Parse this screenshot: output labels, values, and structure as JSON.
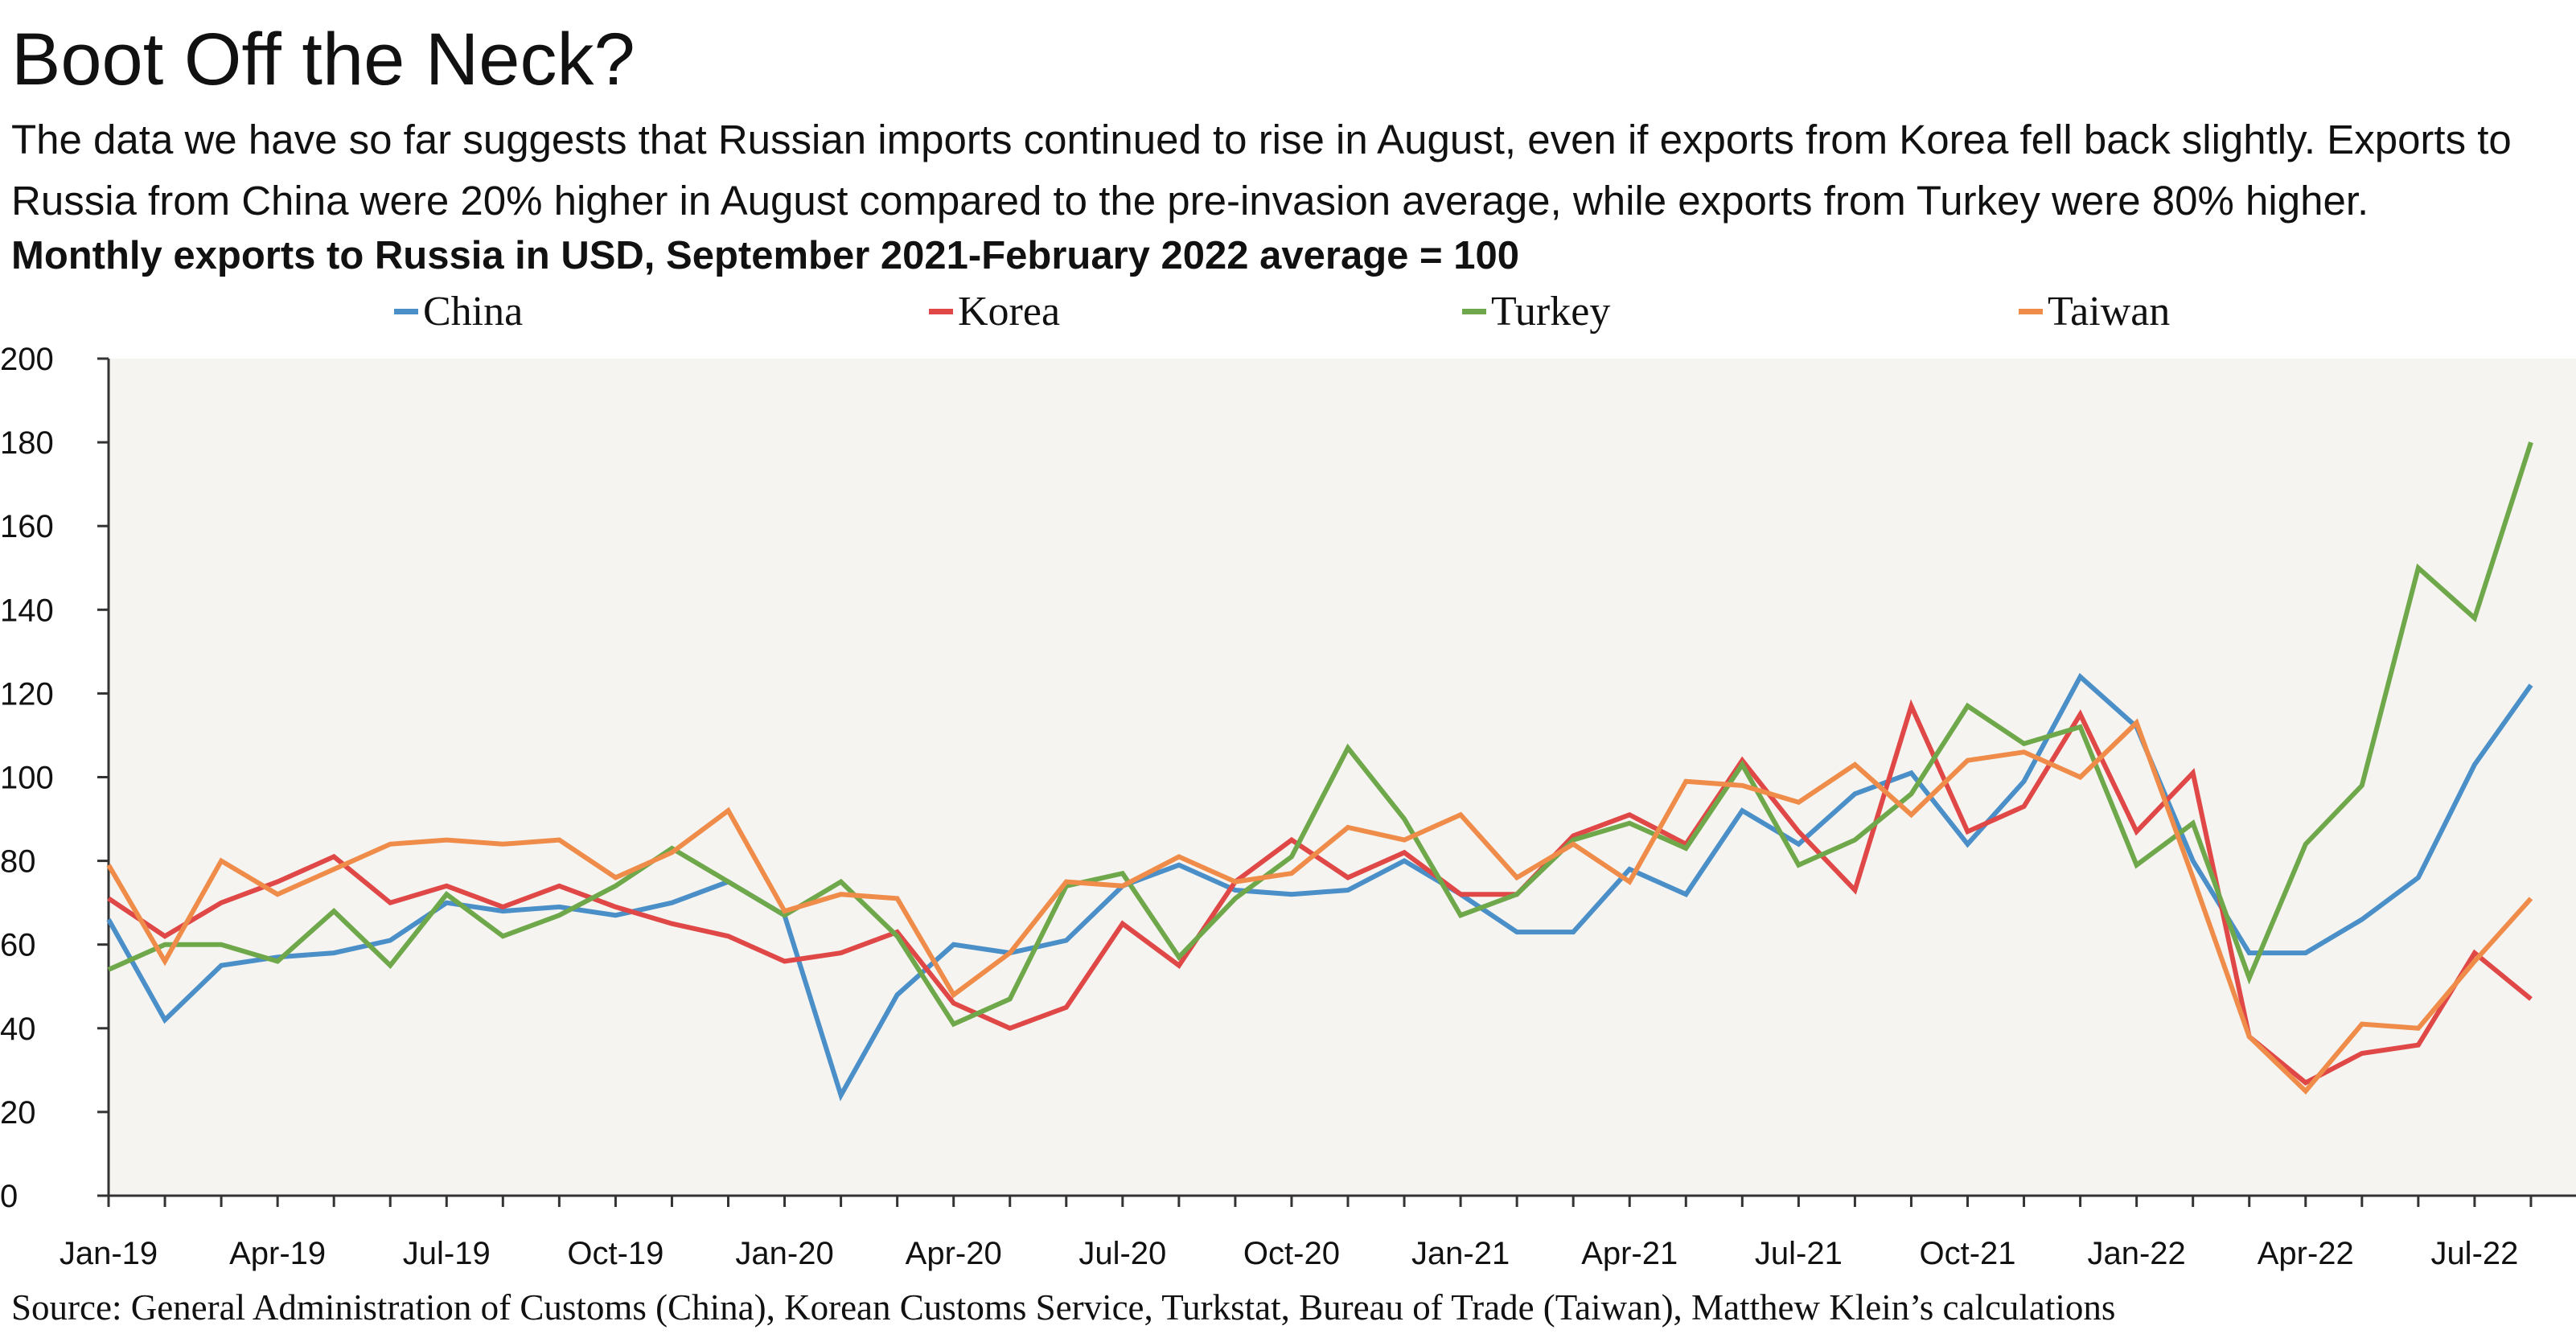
{
  "header": {
    "title": "Boot Off the Neck?",
    "subtitle": "The data we have so far suggests that Russian imports continued to rise in August, even if exports from Korea fell back slightly. Exports to Russia from China were 20% higher in August compared to the pre-invasion average, while exports from Turkey were 80% higher.",
    "unit_line": "Monthly exports to Russia in USD, September 2021-February 2022 average = 100"
  },
  "source": "Source: General Administration of Customs (China), Korean Customs Service, Turkstat, Bureau of Trade (Taiwan), Matthew Klein’s calculations",
  "chart_data": {
    "type": "line",
    "x": [
      "Jan-19",
      "Feb-19",
      "Mar-19",
      "Apr-19",
      "May-19",
      "Jun-19",
      "Jul-19",
      "Aug-19",
      "Sep-19",
      "Oct-19",
      "Nov-19",
      "Dec-19",
      "Jan-20",
      "Feb-20",
      "Mar-20",
      "Apr-20",
      "May-20",
      "Jun-20",
      "Jul-20",
      "Aug-20",
      "Sep-20",
      "Oct-20",
      "Nov-20",
      "Dec-20",
      "Jan-21",
      "Feb-21",
      "Mar-21",
      "Apr-21",
      "May-21",
      "Jun-21",
      "Jul-21",
      "Aug-21",
      "Sep-21",
      "Oct-21",
      "Nov-21",
      "Dec-21",
      "Jan-22",
      "Feb-22",
      "Mar-22",
      "Apr-22",
      "May-22",
      "Jun-22",
      "Jul-22",
      "Aug-22"
    ],
    "xtick_labels": [
      "Jan-19",
      "Apr-19",
      "Jul-19",
      "Oct-19",
      "Jan-20",
      "Apr-20",
      "Jul-20",
      "Oct-20",
      "Jan-21",
      "Apr-21",
      "Jul-21",
      "Oct-21",
      "Jan-22",
      "Apr-22",
      "Jul-22"
    ],
    "ylim": [
      0,
      200
    ],
    "yticks": [
      0,
      20,
      40,
      60,
      80,
      100,
      120,
      140,
      160,
      180,
      200
    ],
    "legend_position": "top",
    "grid": false,
    "plot_background": "#f5f4f0",
    "series": [
      {
        "name": "China",
        "color": "#4a8fc8",
        "values": [
          66,
          42,
          55,
          57,
          58,
          61,
          70,
          68,
          69,
          67,
          70,
          75,
          67,
          24,
          48,
          60,
          58,
          61,
          74,
          79,
          73,
          72,
          73,
          80,
          72,
          63,
          63,
          78,
          72,
          92,
          84,
          96,
          101,
          84,
          99,
          124,
          112,
          80,
          58,
          58,
          66,
          76,
          103,
          122
        ]
      },
      {
        "name": "Korea",
        "color": "#e04848",
        "values": [
          71,
          62,
          70,
          75,
          81,
          70,
          74,
          69,
          74,
          69,
          65,
          62,
          56,
          58,
          63,
          46,
          40,
          45,
          65,
          55,
          75,
          85,
          76,
          82,
          72,
          72,
          86,
          91,
          84,
          104,
          87,
          73,
          117,
          87,
          93,
          115,
          87,
          101,
          38,
          27,
          34,
          36,
          58,
          47
        ]
      },
      {
        "name": "Turkey",
        "color": "#6fa84a",
        "values": [
          54,
          60,
          60,
          56,
          68,
          55,
          72,
          62,
          67,
          74,
          83,
          75,
          67,
          75,
          62,
          41,
          47,
          74,
          77,
          57,
          71,
          81,
          107,
          90,
          67,
          72,
          85,
          89,
          83,
          103,
          79,
          85,
          96,
          117,
          108,
          112,
          79,
          89,
          52,
          84,
          98,
          150,
          138,
          180
        ]
      },
      {
        "name": "Taiwan",
        "color": "#ef8c4a",
        "values": [
          79,
          56,
          80,
          72,
          78,
          84,
          85,
          84,
          85,
          76,
          82,
          92,
          68,
          72,
          71,
          48,
          58,
          75,
          74,
          81,
          75,
          77,
          88,
          85,
          91,
          76,
          84,
          75,
          99,
          98,
          94,
          103,
          91,
          104,
          106,
          100,
          113,
          76,
          38,
          25,
          41,
          40,
          56,
          71
        ]
      }
    ]
  }
}
